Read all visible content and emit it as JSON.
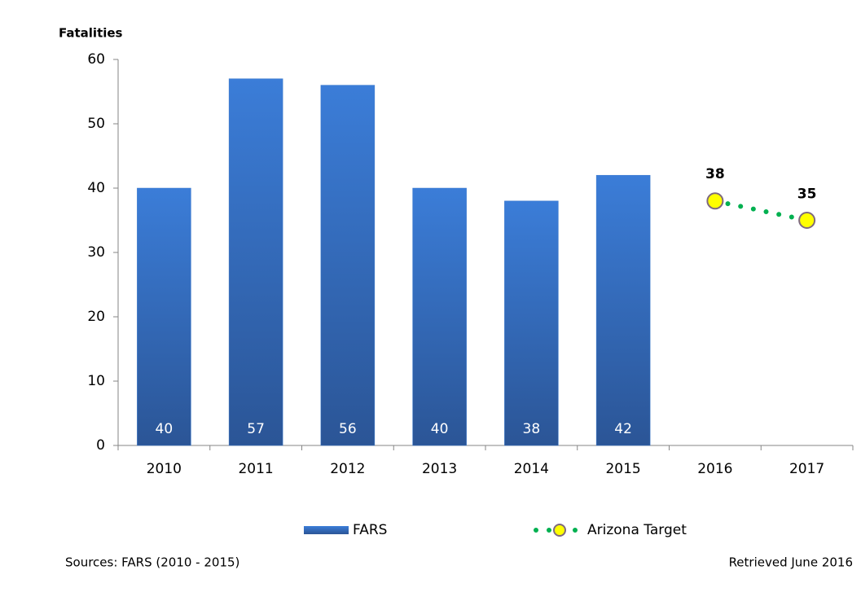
{
  "chart_data": {
    "type": "bar",
    "y_label": "Fatalities",
    "categories": [
      "2010",
      "2011",
      "2012",
      "2013",
      "2014",
      "2015",
      "2016",
      "2017"
    ],
    "series": [
      {
        "name": "FARS",
        "type": "bar",
        "color": "#3a78cc",
        "values": [
          40,
          57,
          56,
          40,
          38,
          42,
          null,
          null
        ]
      },
      {
        "name": "Arizona Target",
        "type": "line",
        "color": "#00b050",
        "marker_color": "#ffff00",
        "values": [
          null,
          null,
          null,
          null,
          null,
          null,
          38,
          35
        ]
      }
    ],
    "ylim": [
      0,
      60
    ],
    "yticks": [
      0,
      10,
      20,
      30,
      40,
      50,
      60
    ],
    "source": "Sources: FARS (2010 - 2015)",
    "retrieved": "Retrieved June 2016"
  }
}
